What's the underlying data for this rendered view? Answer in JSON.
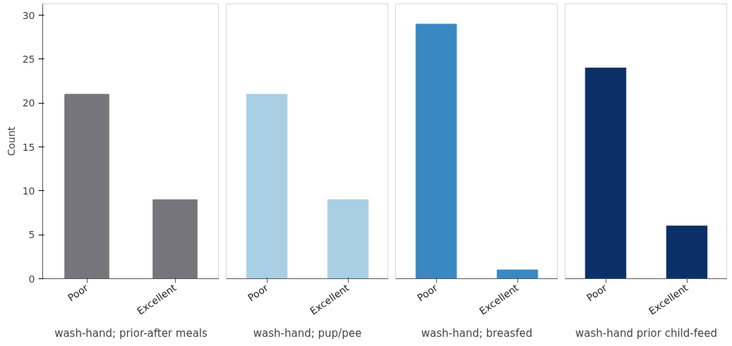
{
  "chart_data": [
    {
      "type": "bar",
      "categories": [
        "Poor",
        "Excellent"
      ],
      "values": [
        21,
        9
      ],
      "color": "#76757a",
      "xlabel": "wash-hand; prior-after meals",
      "ylabel": "Count",
      "ylim": [
        0,
        31.3
      ],
      "yticks": [
        0,
        5,
        10,
        15,
        20,
        25,
        30
      ],
      "grid": false
    },
    {
      "type": "bar",
      "categories": [
        "Poor",
        "Excellent"
      ],
      "values": [
        21,
        9
      ],
      "color": "#a9cfe5",
      "xlabel": "wash-hand; pup/pee",
      "ylim": [
        0,
        31.3
      ],
      "yticks": [
        0,
        5,
        10,
        15,
        20,
        25,
        30
      ],
      "grid": false,
      "tick_labels": "x"
    },
    {
      "type": "bar",
      "categories": [
        "Poor",
        "Excellent"
      ],
      "values": [
        29,
        1
      ],
      "color": "#3a88c2",
      "xlabel": "wash-hand; breasfed",
      "ylim": [
        0,
        31.3
      ],
      "yticks": [
        0,
        5,
        10,
        15,
        20,
        25,
        30
      ],
      "grid": false,
      "tick_labels": "x"
    },
    {
      "type": "bar",
      "categories": [
        "Poor",
        "Excellent"
      ],
      "values": [
        24,
        6
      ],
      "color": "#0b3068",
      "xlabel": "wash-hand prior child-feed",
      "ylim": [
        0,
        31.3
      ],
      "yticks": [
        0,
        5,
        10,
        15,
        20,
        25,
        30
      ],
      "grid": false,
      "tick_labels": "x"
    }
  ]
}
